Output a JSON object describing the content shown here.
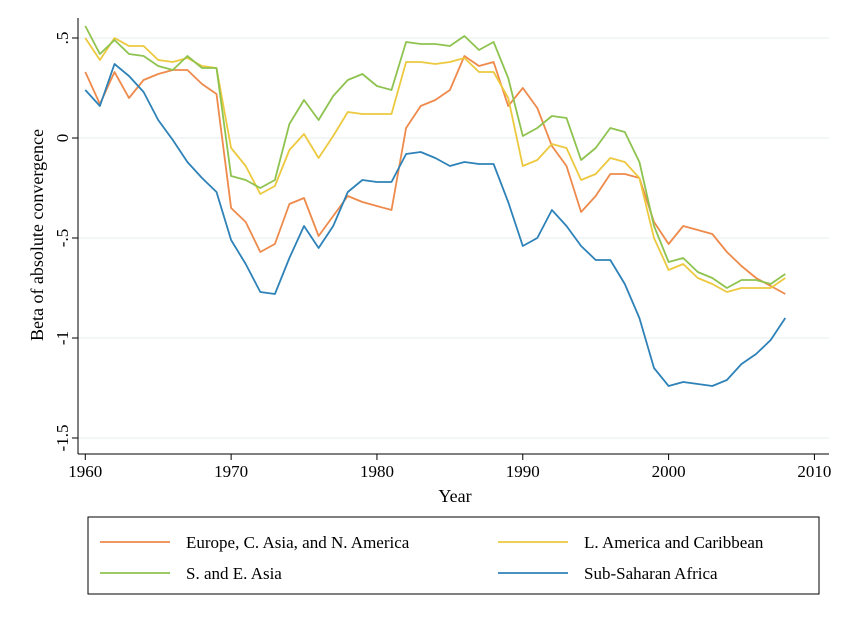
{
  "chart_data": {
    "type": "line",
    "xlabel": "Year",
    "ylabel": "Beta of absolute convergence",
    "xlim": [
      1959.5,
      2011
    ],
    "ylim": [
      -1.58,
      0.6
    ],
    "xticks": [
      1960,
      1970,
      1980,
      1990,
      2000,
      2010
    ],
    "yticks": [
      0.5,
      0,
      -0.5,
      -1,
      -1.5
    ],
    "ytick_labels": [
      ".5",
      "0",
      "-.5",
      "-1",
      "-1.5"
    ],
    "grid": true,
    "legend_position": "bottom",
    "x": [
      1960,
      1961,
      1962,
      1963,
      1964,
      1965,
      1966,
      1967,
      1968,
      1969,
      1970,
      1971,
      1972,
      1973,
      1974,
      1975,
      1976,
      1977,
      1978,
      1979,
      1980,
      1981,
      1982,
      1983,
      1984,
      1985,
      1986,
      1987,
      1988,
      1989,
      1990,
      1991,
      1992,
      1993,
      1994,
      1995,
      1996,
      1997,
      1998,
      1999,
      2000,
      2001,
      2002,
      2003,
      2004,
      2005,
      2006,
      2007,
      2008
    ],
    "series": [
      {
        "name": "Europe, C. Asia, and N. America",
        "color": "#ee8a4b",
        "values": [
          0.33,
          0.17,
          0.33,
          0.2,
          0.29,
          0.32,
          0.34,
          0.34,
          0.27,
          0.22,
          -0.35,
          -0.42,
          -0.57,
          -0.53,
          -0.33,
          -0.3,
          -0.49,
          -0.39,
          -0.29,
          -0.32,
          -0.34,
          -0.36,
          0.05,
          0.16,
          0.19,
          0.24,
          0.41,
          0.36,
          0.38,
          0.16,
          0.25,
          0.15,
          -0.04,
          -0.14,
          -0.37,
          -0.29,
          -0.18,
          -0.18,
          -0.2,
          -0.42,
          -0.53,
          -0.44,
          -0.46,
          -0.48,
          -0.57,
          -0.64,
          -0.7,
          -0.74,
          -0.78
        ]
      },
      {
        "name": "L. America and Caribbean",
        "color": "#ecc93f",
        "values": [
          0.5,
          0.39,
          0.5,
          0.46,
          0.46,
          0.39,
          0.38,
          0.4,
          0.36,
          0.35,
          -0.05,
          -0.14,
          -0.28,
          -0.24,
          -0.06,
          0.02,
          -0.1,
          0.01,
          0.13,
          0.12,
          0.12,
          0.12,
          0.38,
          0.38,
          0.37,
          0.38,
          0.4,
          0.33,
          0.33,
          0.2,
          -0.14,
          -0.11,
          -0.03,
          -0.05,
          -0.21,
          -0.18,
          -0.1,
          -0.12,
          -0.2,
          -0.5,
          -0.66,
          -0.63,
          -0.7,
          -0.73,
          -0.77,
          -0.75,
          -0.75,
          -0.75,
          -0.7
        ]
      },
      {
        "name": "S. and E. Asia",
        "color": "#8ec34f",
        "values": [
          0.56,
          0.42,
          0.49,
          0.42,
          0.41,
          0.36,
          0.34,
          0.41,
          0.35,
          0.35,
          -0.19,
          -0.21,
          -0.25,
          -0.21,
          0.07,
          0.19,
          0.09,
          0.21,
          0.29,
          0.32,
          0.26,
          0.24,
          0.48,
          0.47,
          0.47,
          0.46,
          0.51,
          0.44,
          0.48,
          0.3,
          0.01,
          0.05,
          0.11,
          0.1,
          -0.11,
          -0.05,
          0.05,
          0.03,
          -0.12,
          -0.44,
          -0.62,
          -0.6,
          -0.67,
          -0.7,
          -0.75,
          -0.71,
          -0.71,
          -0.73,
          -0.68
        ]
      },
      {
        "name": "Sub-Saharan Africa",
        "color": "#2e82b8",
        "values": [
          0.24,
          0.16,
          0.37,
          0.31,
          0.23,
          0.09,
          -0.01,
          -0.12,
          -0.2,
          -0.27,
          -0.51,
          -0.63,
          -0.77,
          -0.78,
          -0.6,
          -0.44,
          -0.55,
          -0.44,
          -0.27,
          -0.21,
          -0.22,
          -0.22,
          -0.08,
          -0.07,
          -0.1,
          -0.14,
          -0.12,
          -0.13,
          -0.13,
          -0.32,
          -0.54,
          -0.5,
          -0.36,
          -0.44,
          -0.54,
          -0.61,
          -0.61,
          -0.73,
          -0.9,
          -1.15,
          -1.24,
          -1.22,
          -1.23,
          -1.24,
          -1.21,
          -1.13,
          -1.08,
          -1.01,
          -0.9
        ]
      }
    ]
  }
}
